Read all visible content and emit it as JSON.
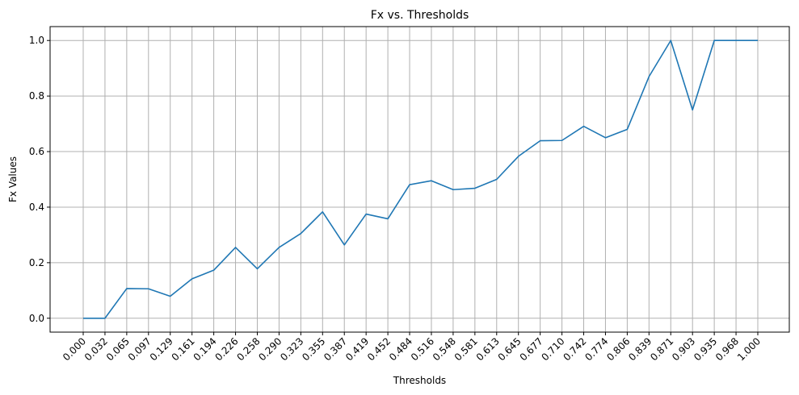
{
  "chart_data": {
    "type": "line",
    "title": "Fx vs. Thresholds",
    "xlabel": "Thresholds",
    "ylabel": "Fx Values",
    "categories": [
      "0.000",
      "0.032",
      "0.065",
      "0.097",
      "0.129",
      "0.161",
      "0.194",
      "0.226",
      "0.258",
      "0.290",
      "0.323",
      "0.355",
      "0.387",
      "0.419",
      "0.452",
      "0.484",
      "0.516",
      "0.548",
      "0.581",
      "0.613",
      "0.645",
      "0.677",
      "0.710",
      "0.742",
      "0.774",
      "0.806",
      "0.839",
      "0.871",
      "0.903",
      "0.935",
      "0.968",
      "1.000"
    ],
    "series": [
      {
        "values": [
          0.0,
          0.0,
          0.107,
          0.106,
          0.079,
          0.142,
          0.173,
          0.255,
          0.178,
          0.255,
          0.305,
          0.383,
          0.264,
          0.375,
          0.358,
          0.481,
          0.495,
          0.463,
          0.468,
          0.5,
          0.583,
          0.639,
          0.64,
          0.691,
          0.65,
          0.68,
          0.87,
          1.0,
          0.75,
          1.0,
          1.0,
          1.0
        ],
        "color": "#1f77b4"
      }
    ],
    "yticks": [
      "0.0",
      "0.2",
      "0.4",
      "0.6",
      "0.8",
      "1.0"
    ],
    "ylim": [
      -0.05,
      1.05
    ],
    "grid": true,
    "legend": "none"
  }
}
